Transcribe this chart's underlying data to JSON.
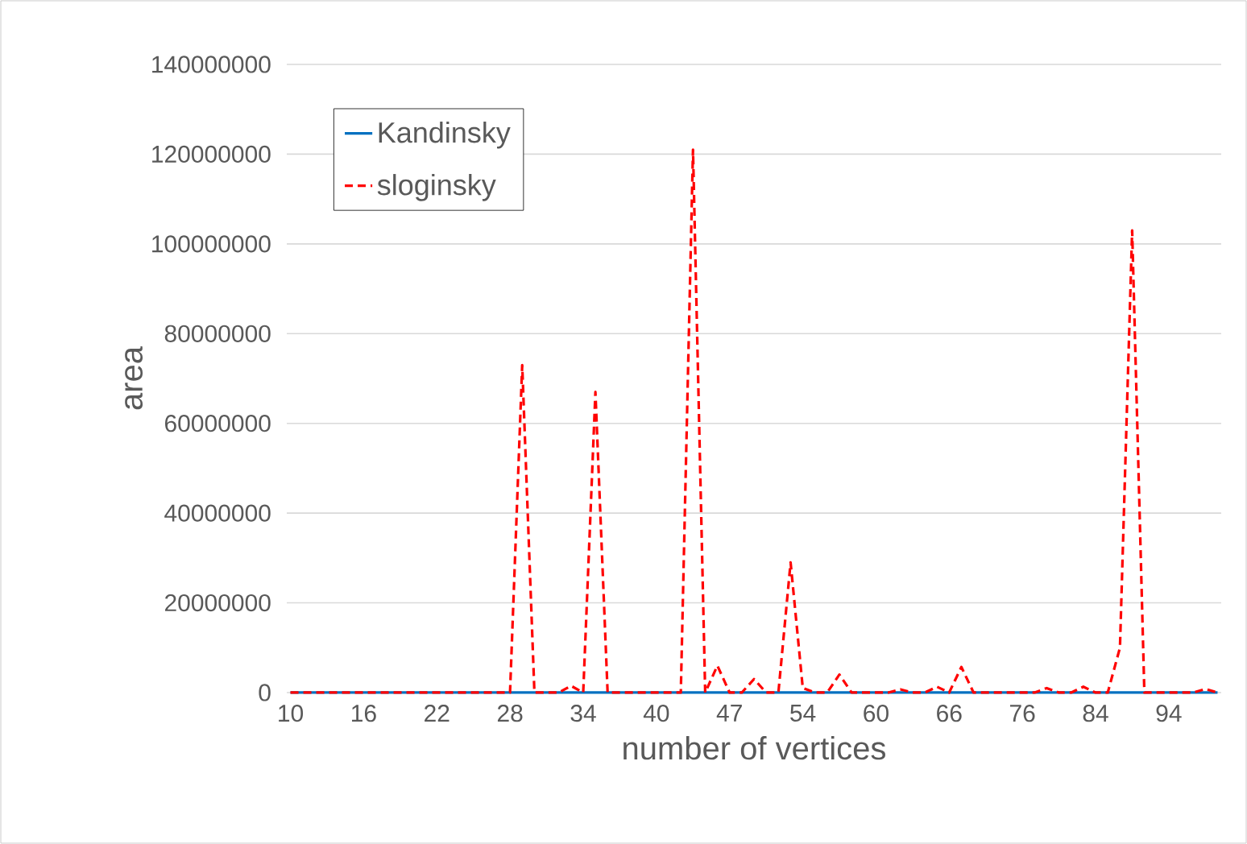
{
  "chart_data": {
    "type": "line",
    "xlabel": "number of vertices",
    "ylabel": "area",
    "categories": [
      "10",
      null,
      null,
      null,
      null,
      null,
      "16",
      null,
      null,
      null,
      null,
      null,
      "22",
      null,
      null,
      null,
      null,
      null,
      "28",
      null,
      null,
      null,
      null,
      null,
      "34",
      null,
      null,
      null,
      null,
      null,
      "40",
      null,
      null,
      null,
      null,
      null,
      "47",
      null,
      null,
      null,
      null,
      null,
      "54",
      null,
      null,
      null,
      null,
      null,
      "60",
      null,
      null,
      null,
      null,
      null,
      "66",
      null,
      null,
      null,
      null,
      null,
      "76",
      null,
      null,
      null,
      null,
      null,
      "84",
      null,
      null,
      null,
      null,
      null,
      "94",
      null,
      null,
      null,
      null
    ],
    "series": [
      {
        "name": "Kandinsky",
        "color": "#0070c0",
        "line_style": "solid",
        "values": [
          0,
          0,
          0,
          0,
          0,
          0,
          0,
          0,
          0,
          0,
          0,
          0,
          0,
          0,
          0,
          0,
          0,
          0,
          0,
          0,
          0,
          0,
          0,
          0,
          0,
          0,
          0,
          0,
          0,
          0,
          0,
          0,
          0,
          0,
          0,
          0,
          0,
          0,
          0,
          0,
          0,
          0,
          0,
          0,
          0,
          0,
          0,
          0,
          0,
          0,
          0,
          0,
          0,
          0,
          0,
          0,
          0,
          0,
          0,
          0,
          0,
          0,
          0,
          0,
          0,
          0,
          0,
          0,
          0,
          0,
          0,
          0,
          0,
          0,
          0,
          0,
          0
        ]
      },
      {
        "name": "sloginsky",
        "color": "#ff0000",
        "line_style": "dashed",
        "values": [
          0,
          0,
          0,
          0,
          0,
          0,
          0,
          0,
          0,
          0,
          0,
          0,
          0,
          0,
          0,
          0,
          0,
          0,
          0,
          73000000,
          0,
          0,
          0,
          1500000,
          0,
          67000000,
          0,
          0,
          0,
          0,
          0,
          0,
          0,
          121000000,
          0,
          6000000,
          0,
          0,
          3000000,
          0,
          0,
          29000000,
          1000000,
          0,
          0,
          4000000,
          0,
          0,
          0,
          0,
          700000,
          0,
          0,
          1300000,
          0,
          5700000,
          0,
          0,
          0,
          0,
          0,
          0,
          1000000,
          0,
          0,
          1300000,
          0,
          0,
          10000000,
          103000000,
          0,
          0,
          0,
          0,
          0,
          800000,
          0
        ]
      }
    ],
    "ylim": [
      0,
      140000000
    ],
    "yticks": [
      0,
      20000000,
      40000000,
      60000000,
      80000000,
      100000000,
      120000000,
      140000000
    ],
    "grid": "y",
    "legend": "top left",
    "marker": "none"
  }
}
